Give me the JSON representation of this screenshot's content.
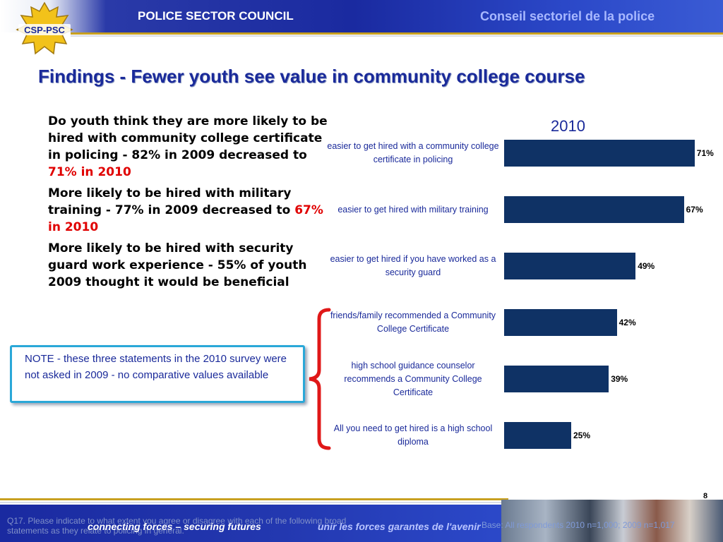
{
  "header": {
    "logo_text": "CSP-PSC",
    "org_en": "POLICE SECTOR COUNCIL",
    "org_fr": "Conseil  sectoriel de la police"
  },
  "title": "Findings - Fewer youth see value in community college course",
  "findings": [
    {
      "text": "Do youth think they are more likely to be hired with community college certificate in policing  - 82% in 2009 decreased to ",
      "highlight": "71% in 2010"
    },
    {
      "text": "More likely to be hired with military training - 77% in 2009 decreased to ",
      "highlight": "67% in 2010"
    },
    {
      "text": "More likely to be hired with security guard work experience - 55% of youth 2009 thought it would be beneficial",
      "highlight": ""
    }
  ],
  "note": {
    "prefix": "NOTE",
    "text": " - these three statements in the 2010 survey were not asked in 2009 - no comparative values available"
  },
  "chart_data": {
    "type": "bar",
    "orientation": "horizontal",
    "title": "2010",
    "categories": [
      "easier to get hired with a community college certificate in policing",
      "easier to get hired with military training",
      "easier to get hired if you have worked as a security guard",
      "friends/family recommended a Community College Certificate",
      "high school guidance counselor recommends a Community College Certificate",
      "All you need to get hired is a high school diploma"
    ],
    "values": [
      71,
      67,
      49,
      42,
      39,
      25
    ],
    "value_labels": [
      "71%",
      "67%",
      "49%",
      "42%",
      "39%",
      "25%"
    ],
    "xlim": [
      0,
      100
    ],
    "grid": false,
    "bar_color": "#0f3265"
  },
  "footer": {
    "page_number": "8",
    "tagline_en": "connecting forces – securing futures",
    "tagline_fr": "unir les forces garantes de l'avenir",
    "question": "Q17. Please indicate to what extent you agree or disagree with each of the following broad statements as they relate to policing in general.",
    "base": "Base: All respondents 2010 n=1,000; 2009 n=1,017"
  }
}
